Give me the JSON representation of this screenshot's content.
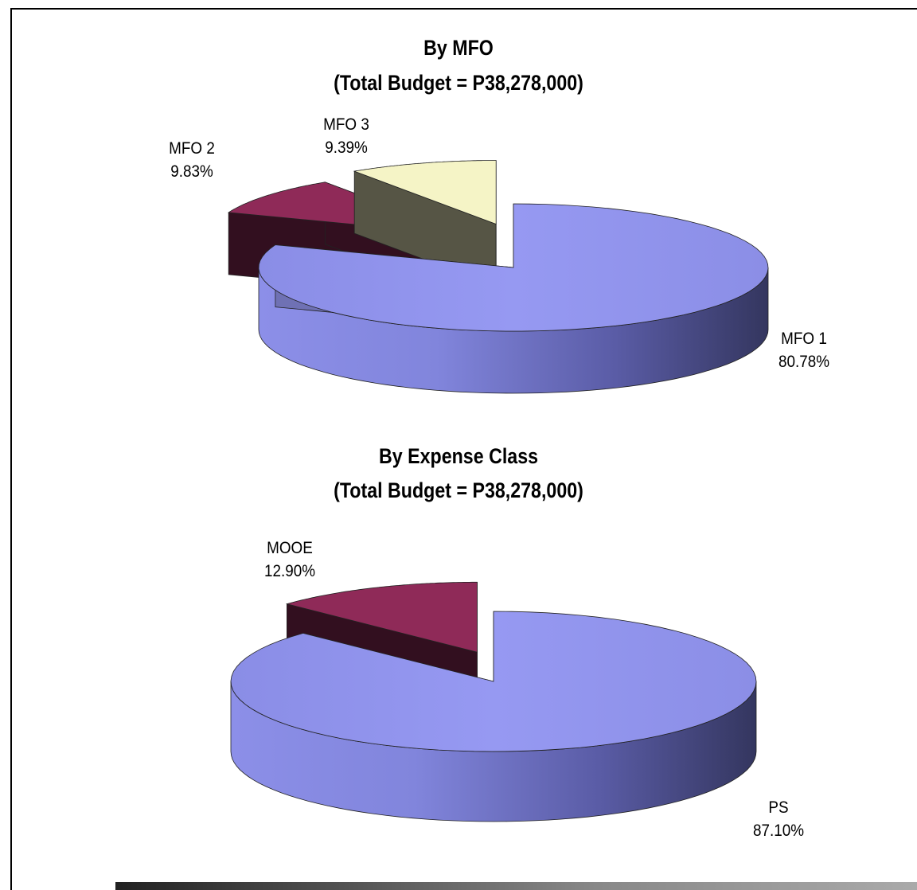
{
  "chart_data": [
    {
      "type": "pie",
      "title": "By MFO",
      "subtitle": "(Total Budget = P38,278,000)",
      "slices": [
        {
          "name": "MFO 1",
          "value": 80.78,
          "label": "80.78%",
          "color": "#9497f0"
        },
        {
          "name": "MFO 2",
          "value": 9.83,
          "label": "9.83%",
          "color": "#8f2a58"
        },
        {
          "name": "MFO 3",
          "value": 9.39,
          "label": "9.39%",
          "color": "#f5f4c6"
        }
      ]
    },
    {
      "type": "pie",
      "title": "By Expense Class",
      "subtitle": "(Total Budget = P38,278,000)",
      "slices": [
        {
          "name": "PS",
          "value": 87.1,
          "label": "87.10%",
          "color": "#9497f0"
        },
        {
          "name": "MOOE",
          "value": 12.9,
          "label": "12.90%",
          "color": "#8f2a58"
        }
      ]
    }
  ]
}
